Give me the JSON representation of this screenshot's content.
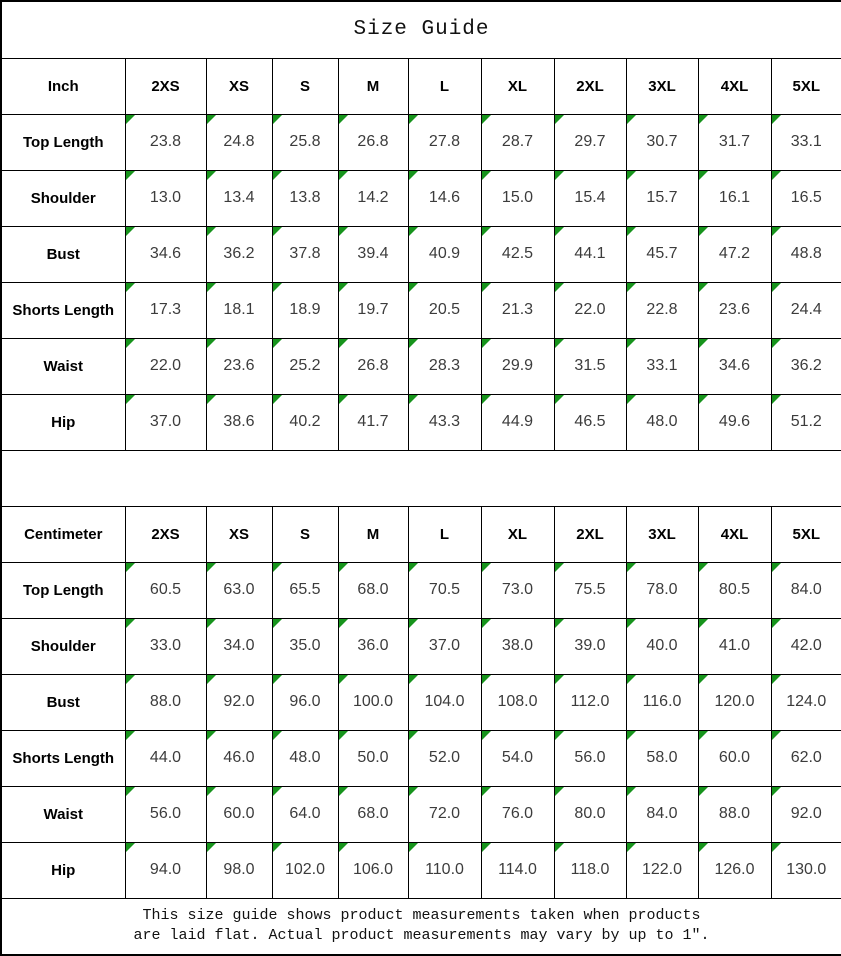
{
  "title": "Size Guide",
  "sizes": [
    "2XS",
    "XS",
    "S",
    "M",
    "L",
    "XL",
    "2XL",
    "3XL",
    "4XL",
    "5XL"
  ],
  "tables": [
    {
      "unit_label": "Inch",
      "rows": [
        {
          "label": "Top Length",
          "values": [
            "23.8",
            "24.8",
            "25.8",
            "26.8",
            "27.8",
            "28.7",
            "29.7",
            "30.7",
            "31.7",
            "33.1"
          ]
        },
        {
          "label": "Shoulder",
          "values": [
            "13.0",
            "13.4",
            "13.8",
            "14.2",
            "14.6",
            "15.0",
            "15.4",
            "15.7",
            "16.1",
            "16.5"
          ]
        },
        {
          "label": "Bust",
          "values": [
            "34.6",
            "36.2",
            "37.8",
            "39.4",
            "40.9",
            "42.5",
            "44.1",
            "45.7",
            "47.2",
            "48.8"
          ]
        },
        {
          "label": "Shorts Length",
          "values": [
            "17.3",
            "18.1",
            "18.9",
            "19.7",
            "20.5",
            "21.3",
            "22.0",
            "22.8",
            "23.6",
            "24.4"
          ]
        },
        {
          "label": "Waist",
          "values": [
            "22.0",
            "23.6",
            "25.2",
            "26.8",
            "28.3",
            "29.9",
            "31.5",
            "33.1",
            "34.6",
            "36.2"
          ]
        },
        {
          "label": "Hip",
          "values": [
            "37.0",
            "38.6",
            "40.2",
            "41.7",
            "43.3",
            "44.9",
            "46.5",
            "48.0",
            "49.6",
            "51.2"
          ]
        }
      ]
    },
    {
      "unit_label": "Centimeter",
      "rows": [
        {
          "label": "Top Length",
          "values": [
            "60.5",
            "63.0",
            "65.5",
            "68.0",
            "70.5",
            "73.0",
            "75.5",
            "78.0",
            "80.5",
            "84.0"
          ]
        },
        {
          "label": "Shoulder",
          "values": [
            "33.0",
            "34.0",
            "35.0",
            "36.0",
            "37.0",
            "38.0",
            "39.0",
            "40.0",
            "41.0",
            "42.0"
          ]
        },
        {
          "label": "Bust",
          "values": [
            "88.0",
            "92.0",
            "96.0",
            "100.0",
            "104.0",
            "108.0",
            "112.0",
            "116.0",
            "120.0",
            "124.0"
          ]
        },
        {
          "label": "Shorts Length",
          "values": [
            "44.0",
            "46.0",
            "48.0",
            "50.0",
            "52.0",
            "54.0",
            "56.0",
            "58.0",
            "60.0",
            "62.0"
          ]
        },
        {
          "label": "Waist",
          "values": [
            "56.0",
            "60.0",
            "64.0",
            "68.0",
            "72.0",
            "76.0",
            "80.0",
            "84.0",
            "88.0",
            "92.0"
          ]
        },
        {
          "label": "Hip",
          "values": [
            "94.0",
            "98.0",
            "102.0",
            "106.0",
            "110.0",
            "114.0",
            "118.0",
            "122.0",
            "126.0",
            "130.0"
          ]
        }
      ]
    }
  ],
  "footer": {
    "line1": "This size guide shows product measurements taken when products",
    "line2": "are laid flat. Actual product measurements may vary by up to 1″."
  },
  "colors": {
    "grid": "#000000",
    "header_text": "#000000",
    "value_text": "#3c3c3c",
    "flag_green": "#17941c",
    "background": "#ffffff"
  }
}
